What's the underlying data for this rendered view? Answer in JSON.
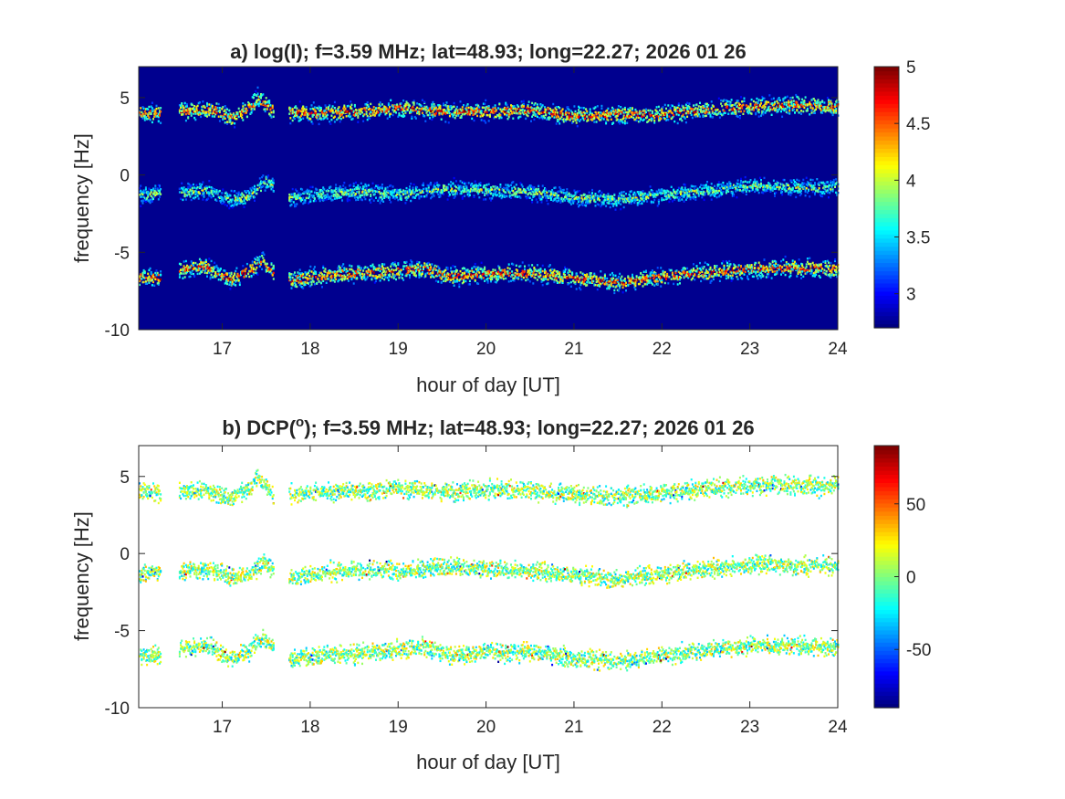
{
  "chart_data": [
    {
      "type": "heatmap",
      "panel": "a",
      "title": "a) log(I); f=3.59 MHz;  lat=48.93; long=22.27; 2026 01 26",
      "xlabel": "hour of day [UT]",
      "ylabel": "frequency [Hz]",
      "xlim": [
        16.05,
        24
      ],
      "ylim": [
        -10,
        7
      ],
      "xticks": [
        17,
        18,
        19,
        20,
        21,
        22,
        23,
        24
      ],
      "yticks": [
        -10,
        -5,
        0,
        5
      ],
      "colorbar": {
        "limits": [
          2.7,
          5
        ],
        "ticks": [
          3,
          3.5,
          4,
          4.5,
          5
        ],
        "colormap": "jet",
        "background_color": "#00008f"
      },
      "gaps": [
        [
          16.3,
          16.5
        ],
        [
          17.58,
          17.75
        ]
      ],
      "bands": [
        {
          "name": "upper",
          "points": [
            [
              16.05,
              4.0
            ],
            [
              16.3,
              3.9
            ],
            [
              16.5,
              4.1
            ],
            [
              16.9,
              4.2
            ],
            [
              17.1,
              3.6
            ],
            [
              17.3,
              4.3
            ],
            [
              17.4,
              5.0
            ],
            [
              17.55,
              4.2
            ],
            [
              17.8,
              4.0
            ],
            [
              18.2,
              4.0
            ],
            [
              18.6,
              4.1
            ],
            [
              19.0,
              4.3
            ],
            [
              19.5,
              4.1
            ],
            [
              20.0,
              4.1
            ],
            [
              20.5,
              4.2
            ],
            [
              21.0,
              3.8
            ],
            [
              21.5,
              3.9
            ],
            [
              22.0,
              3.9
            ],
            [
              22.5,
              4.2
            ],
            [
              23.0,
              4.4
            ],
            [
              23.5,
              4.5
            ],
            [
              24.0,
              4.4
            ]
          ]
        },
        {
          "name": "middle",
          "points": [
            [
              16.05,
              -1.3
            ],
            [
              16.3,
              -1.2
            ],
            [
              16.5,
              -1.2
            ],
            [
              16.8,
              -1.0
            ],
            [
              17.1,
              -1.6
            ],
            [
              17.3,
              -1.4
            ],
            [
              17.5,
              -0.4
            ],
            [
              17.75,
              -1.5
            ],
            [
              18.2,
              -1.2
            ],
            [
              18.6,
              -1.1
            ],
            [
              19.0,
              -1.3
            ],
            [
              19.5,
              -0.9
            ],
            [
              20.0,
              -1.0
            ],
            [
              20.5,
              -1.1
            ],
            [
              21.0,
              -1.5
            ],
            [
              21.5,
              -1.6
            ],
            [
              22.0,
              -1.3
            ],
            [
              22.5,
              -1.0
            ],
            [
              23.0,
              -0.7
            ],
            [
              23.5,
              -0.8
            ],
            [
              24.0,
              -0.8
            ]
          ]
        },
        {
          "name": "lower",
          "points": [
            [
              16.05,
              -6.6
            ],
            [
              16.3,
              -6.7
            ],
            [
              16.5,
              -6.2
            ],
            [
              16.8,
              -5.9
            ],
            [
              17.1,
              -6.8
            ],
            [
              17.3,
              -6.2
            ],
            [
              17.45,
              -5.6
            ],
            [
              17.7,
              -6.9
            ],
            [
              18.0,
              -6.6
            ],
            [
              18.4,
              -6.4
            ],
            [
              18.8,
              -6.3
            ],
            [
              19.3,
              -6.1
            ],
            [
              19.6,
              -6.6
            ],
            [
              20.0,
              -6.4
            ],
            [
              20.5,
              -6.3
            ],
            [
              21.0,
              -6.7
            ],
            [
              21.5,
              -7.0
            ],
            [
              22.0,
              -6.6
            ],
            [
              22.5,
              -6.3
            ],
            [
              23.0,
              -6.1
            ],
            [
              23.5,
              -6.0
            ],
            [
              24.0,
              -6.1
            ]
          ]
        }
      ]
    },
    {
      "type": "heatmap",
      "panel": "b",
      "title": "b) DCP(",
      "title_sup": "o",
      "title_rest": "); f=3.59 MHz;  lat=48.93; long=22.27; 2026 01 26",
      "xlabel": "hour of day [UT]",
      "ylabel": "frequency [Hz]",
      "xlim": [
        16.05,
        24
      ],
      "ylim": [
        -10,
        7
      ],
      "xticks": [
        17,
        18,
        19,
        20,
        21,
        22,
        23,
        24
      ],
      "yticks": [
        -10,
        -5,
        0,
        5
      ],
      "colorbar": {
        "limits": [
          -90,
          90
        ],
        "ticks": [
          -50,
          0,
          50
        ],
        "colormap": "jet",
        "background_color": "#ffffff"
      },
      "gaps": [
        [
          16.3,
          16.5
        ],
        [
          17.58,
          17.75
        ]
      ],
      "bands": [
        {
          "name": "upper",
          "points": [
            [
              16.05,
              4.0
            ],
            [
              16.3,
              3.9
            ],
            [
              16.5,
              4.1
            ],
            [
              16.9,
              4.0
            ],
            [
              17.1,
              3.5
            ],
            [
              17.3,
              4.2
            ],
            [
              17.4,
              4.9
            ],
            [
              17.55,
              3.9
            ],
            [
              17.8,
              3.8
            ],
            [
              18.2,
              4.0
            ],
            [
              18.6,
              4.0
            ],
            [
              19.0,
              4.2
            ],
            [
              19.5,
              4.0
            ],
            [
              20.0,
              4.1
            ],
            [
              20.5,
              4.1
            ],
            [
              21.0,
              3.8
            ],
            [
              21.5,
              3.7
            ],
            [
              22.0,
              3.9
            ],
            [
              22.5,
              4.2
            ],
            [
              23.0,
              4.4
            ],
            [
              23.5,
              4.4
            ],
            [
              24.0,
              4.4
            ]
          ]
        },
        {
          "name": "middle",
          "points": [
            [
              16.05,
              -1.3
            ],
            [
              16.3,
              -1.2
            ],
            [
              16.5,
              -1.2
            ],
            [
              16.8,
              -1.0
            ],
            [
              17.1,
              -1.6
            ],
            [
              17.3,
              -1.4
            ],
            [
              17.45,
              -0.6
            ],
            [
              17.75,
              -1.6
            ],
            [
              18.2,
              -1.2
            ],
            [
              18.6,
              -1.1
            ],
            [
              19.0,
              -1.2
            ],
            [
              19.5,
              -0.9
            ],
            [
              20.0,
              -1.0
            ],
            [
              20.5,
              -1.1
            ],
            [
              21.0,
              -1.4
            ],
            [
              21.5,
              -1.7
            ],
            [
              22.0,
              -1.3
            ],
            [
              22.5,
              -1.0
            ],
            [
              23.0,
              -0.7
            ],
            [
              23.5,
              -0.8
            ],
            [
              24.0,
              -0.8
            ]
          ]
        },
        {
          "name": "lower",
          "points": [
            [
              16.05,
              -6.6
            ],
            [
              16.3,
              -6.7
            ],
            [
              16.5,
              -6.2
            ],
            [
              16.8,
              -6.0
            ],
            [
              17.1,
              -6.9
            ],
            [
              17.3,
              -6.3
            ],
            [
              17.45,
              -5.5
            ],
            [
              17.7,
              -6.9
            ],
            [
              18.0,
              -6.7
            ],
            [
              18.4,
              -6.5
            ],
            [
              18.8,
              -6.4
            ],
            [
              19.3,
              -6.1
            ],
            [
              19.6,
              -6.6
            ],
            [
              20.0,
              -6.4
            ],
            [
              20.5,
              -6.4
            ],
            [
              21.0,
              -6.8
            ],
            [
              21.5,
              -7.0
            ],
            [
              22.0,
              -6.6
            ],
            [
              22.5,
              -6.3
            ],
            [
              23.0,
              -6.0
            ],
            [
              23.5,
              -6.0
            ],
            [
              24.0,
              -6.1
            ]
          ]
        }
      ]
    }
  ]
}
